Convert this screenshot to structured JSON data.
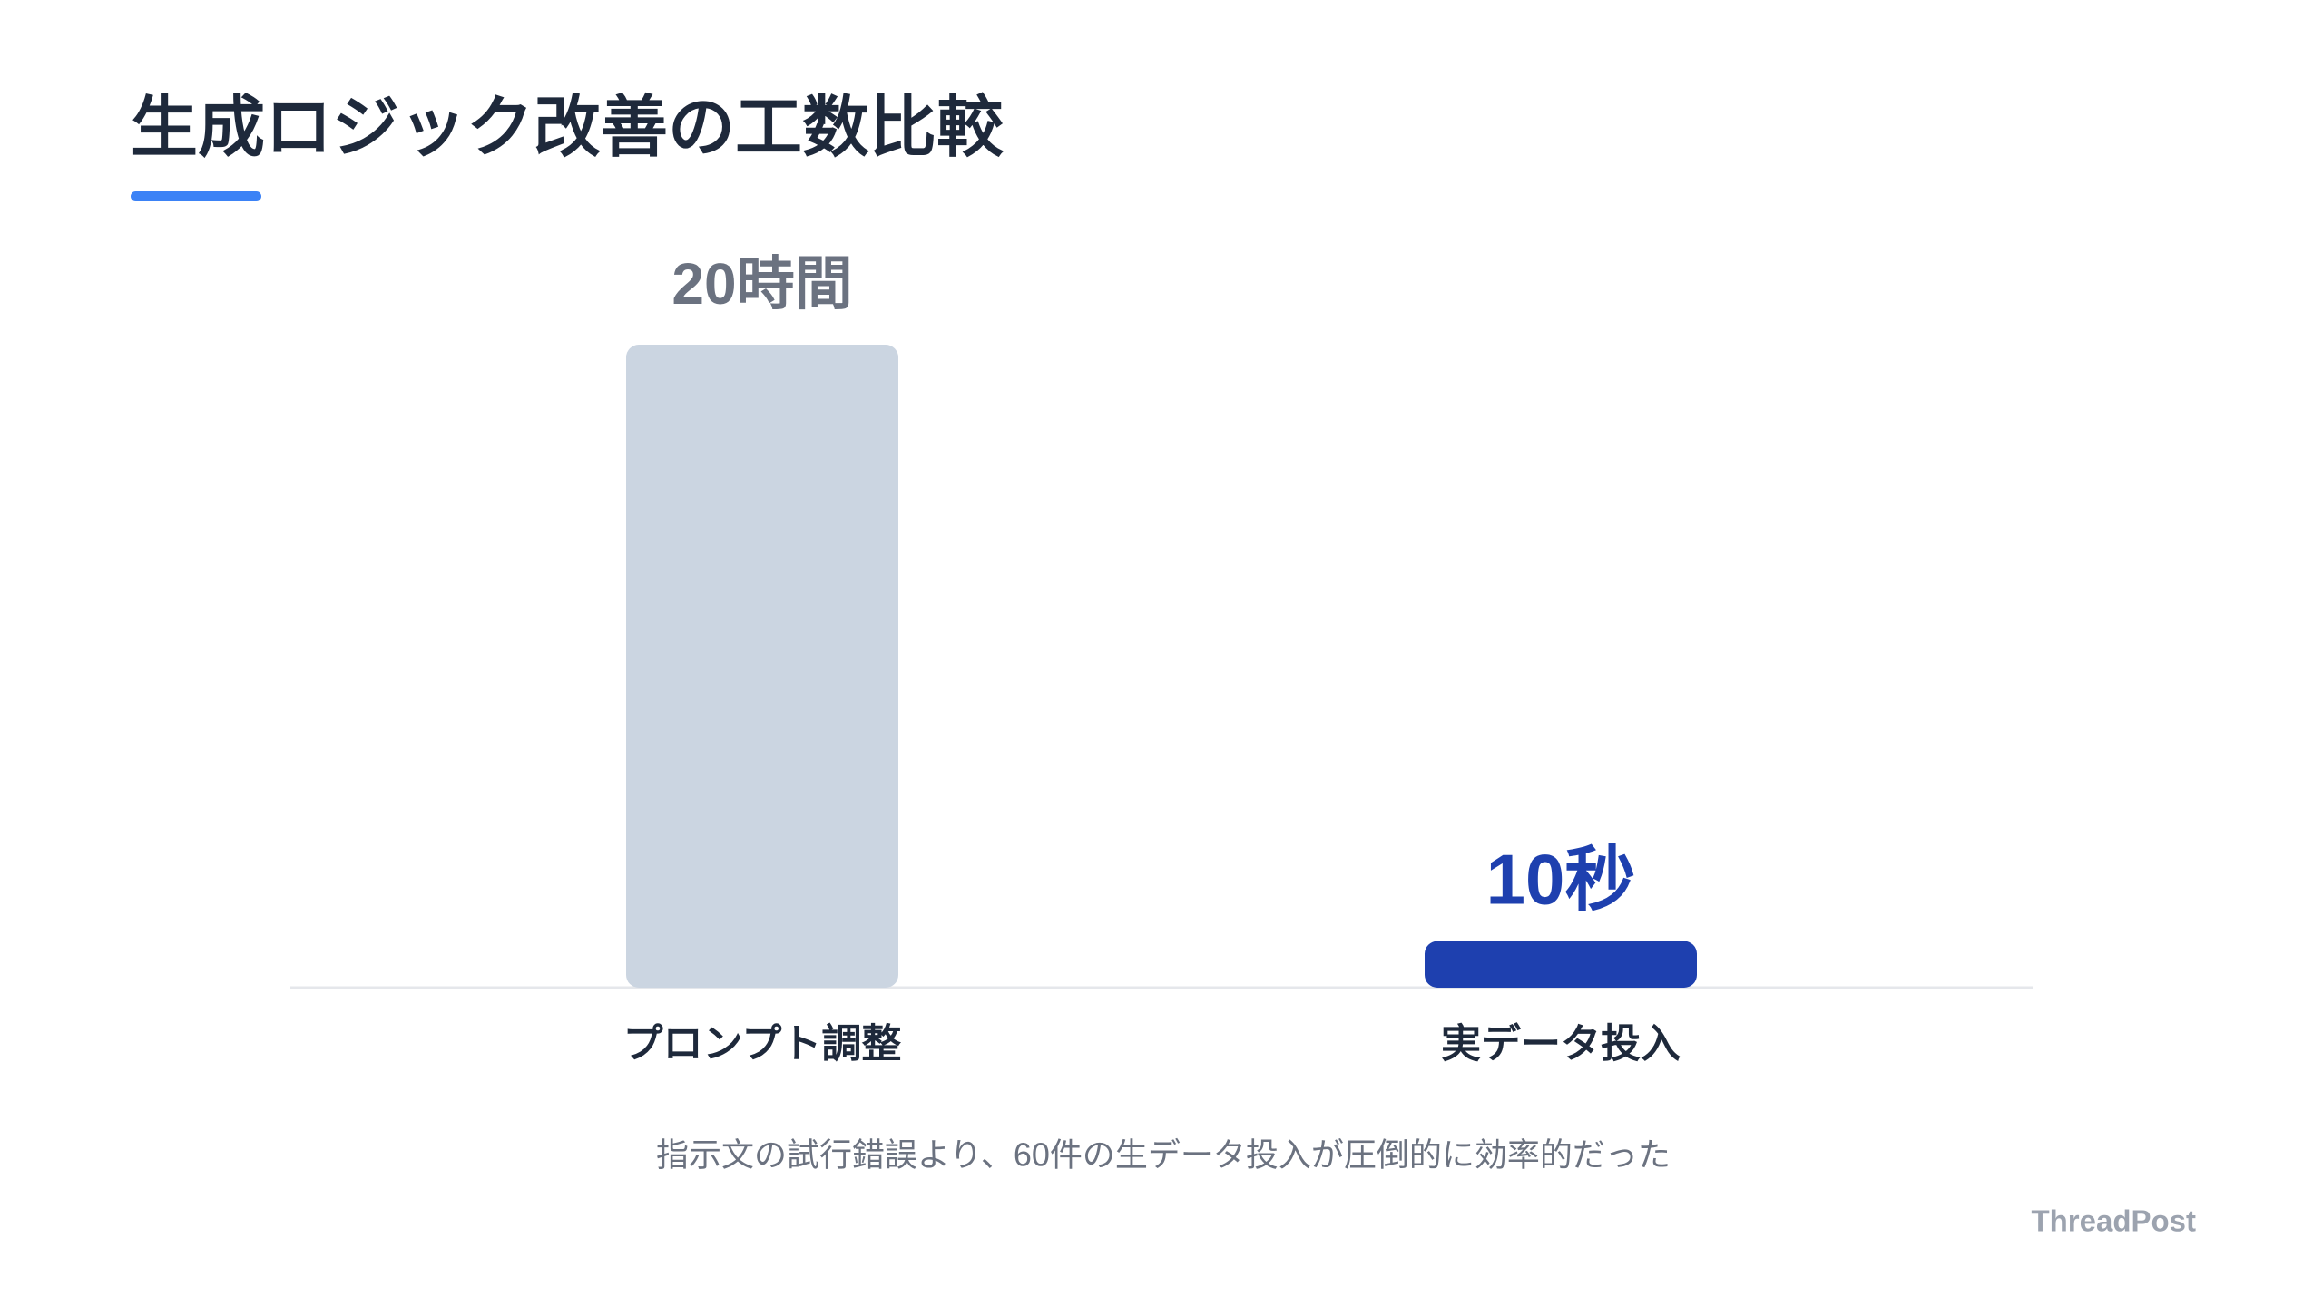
{
  "chart_data": {
    "type": "bar",
    "title": "生成ロジック改善の工数比較",
    "categories": [
      "プロンプト調整",
      "実データ投入"
    ],
    "values": [
      72000,
      10
    ],
    "value_labels": [
      "20時間",
      "10秒"
    ],
    "colors": [
      "#cbd5e1",
      "#1e40af"
    ],
    "label_colors": [
      "#6b7280",
      "#1e40af"
    ],
    "log_scale": true,
    "ylim": [
      5,
      72000
    ],
    "caption": "指示文の試行錯誤より、60件の生データ投入が圧倒的に効率的だった"
  },
  "brand": "ThreadPost"
}
